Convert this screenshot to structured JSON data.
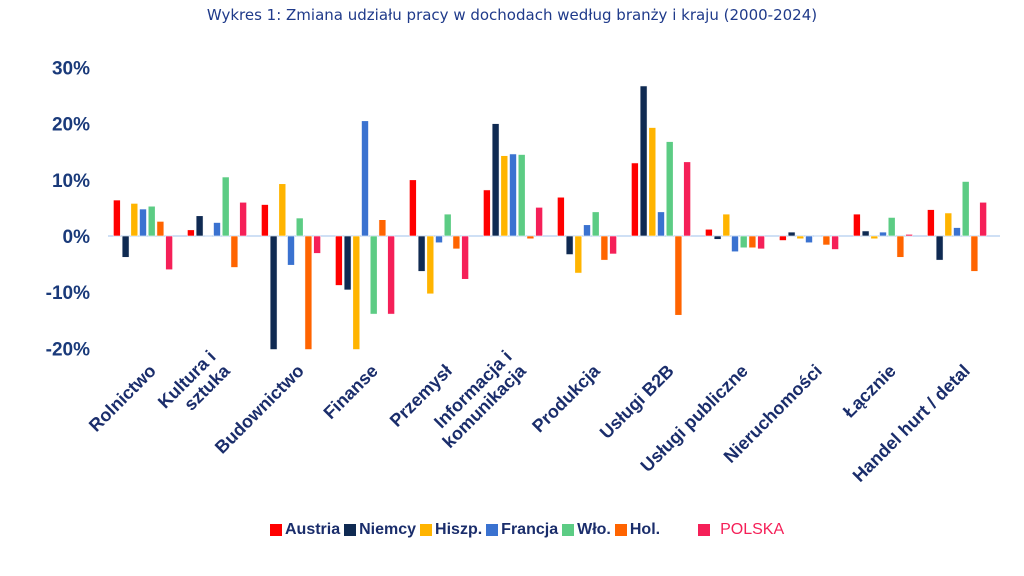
{
  "chart_data": {
    "type": "bar",
    "title": "Wykres 1: Zmiana udziału pracy w dochodach według branży i kraju (2000-2024)",
    "xlabel": "",
    "ylabel": "",
    "ylim": [
      -20,
      30
    ],
    "yticks": [
      30,
      20,
      10,
      0,
      -10,
      -20
    ],
    "ytick_labels": [
      "30%",
      "20%",
      "10%",
      "0%",
      "-10%",
      "-20%"
    ],
    "legend_position": "bottom",
    "categories": [
      [
        "Rolnictwo"
      ],
      [
        "Kultura i",
        "sztuka"
      ],
      [
        "Budownictwo"
      ],
      [
        "Finanse"
      ],
      [
        "Przemysł"
      ],
      [
        "Informacja i",
        "komunikacja"
      ],
      [
        "Produkcja"
      ],
      [
        "Usługi B2B"
      ],
      [
        "Usługi publiczne"
      ],
      [
        "Nieruchomości"
      ],
      [
        "Łącznie"
      ],
      [
        "Handel hurt / detal"
      ]
    ],
    "series": [
      {
        "name": "Austria",
        "color": "#ff0000",
        "values": [
          6.4,
          1.1,
          5.6,
          -8.8,
          10.0,
          8.2,
          6.9,
          13.0,
          1.2,
          -0.8,
          3.9,
          4.7
        ]
      },
      {
        "name": "Niemcy",
        "color": "#0f2a52",
        "values": [
          -3.8,
          3.6,
          -20.2,
          -9.6,
          -6.3,
          20.0,
          -3.3,
          26.7,
          -0.6,
          0.7,
          0.9,
          -4.3
        ]
      },
      {
        "name": "Hiszp.",
        "color": "#ffb400",
        "values": [
          5.8,
          0,
          9.3,
          -20.2,
          -10.3,
          14.3,
          -6.6,
          19.3,
          3.9,
          -0.5,
          -0.5,
          4.1
        ]
      },
      {
        "name": "Francja",
        "color": "#3a72d0",
        "values": [
          4.8,
          2.4,
          -5.2,
          20.5,
          -1.2,
          14.6,
          2.0,
          4.3,
          -2.8,
          -1.2,
          0.7,
          1.5
        ]
      },
      {
        "name": "Wło.",
        "color": "#5ccc84",
        "values": [
          5.3,
          10.5,
          3.2,
          -13.9,
          3.9,
          14.5,
          4.3,
          16.8,
          -2.1,
          0,
          3.3,
          9.7
        ]
      },
      {
        "name": "Hol.",
        "color": "#ff6400",
        "values": [
          2.6,
          -5.6,
          -20.2,
          2.9,
          -2.3,
          -0.5,
          -4.3,
          -14.1,
          -2.1,
          -1.6,
          -3.8,
          -6.3
        ]
      },
      {
        "name": "POLSKA",
        "color": "#f52058",
        "values": [
          -6.0,
          6.0,
          -3.1,
          -13.9,
          -7.7,
          5.1,
          -3.2,
          13.2,
          -2.3,
          -2.4,
          0.3,
          6.0
        ]
      }
    ]
  }
}
